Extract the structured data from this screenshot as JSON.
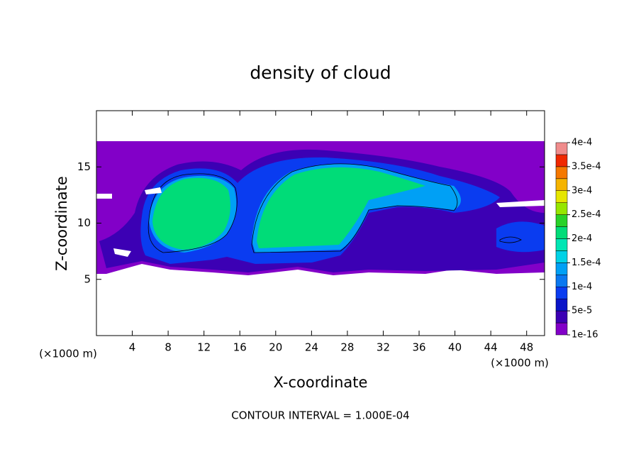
{
  "chart_data": {
    "type": "contour",
    "title": "density of cloud",
    "x_label": "X-coordinate",
    "y_label": "Z-coordinate",
    "x_unit_left": "(×1000 m)",
    "x_unit_right": "(×1000 m)",
    "annotation": "CONTOUR INTERVAL = 1.000E-04",
    "xlim": [
      0,
      50
    ],
    "xticks": [
      4,
      8,
      12,
      16,
      20,
      24,
      28,
      32,
      36,
      40,
      44,
      48
    ],
    "ylim": [
      0,
      20
    ],
    "yticks": [
      5,
      10,
      15
    ],
    "colorbar": {
      "levels": [
        {
          "value": 1e-16,
          "label": "1e-16"
        },
        {
          "value": 5e-05,
          "label": "5e-5"
        },
        {
          "value": 0.0001,
          "label": "1e-4"
        },
        {
          "value": 0.00015,
          "label": "1.5e-4"
        },
        {
          "value": 0.0002,
          "label": "2e-4"
        },
        {
          "value": 0.00025,
          "label": "2.5e-4"
        },
        {
          "value": 0.0003,
          "label": "3e-4"
        },
        {
          "value": 0.00035,
          "label": "3.5e-4"
        },
        {
          "value": 0.0004,
          "label": "4e-4"
        }
      ],
      "colors": [
        "#8200c8",
        "#3c00b4",
        "#0a14c8",
        "#0a3cf0",
        "#0a78f0",
        "#00a0f5",
        "#00d2e6",
        "#00e6b4",
        "#00dc78",
        "#28d228",
        "#96e600",
        "#e6e600",
        "#f5b400",
        "#f57800",
        "#f02800",
        "#f08c8c"
      ]
    }
  }
}
